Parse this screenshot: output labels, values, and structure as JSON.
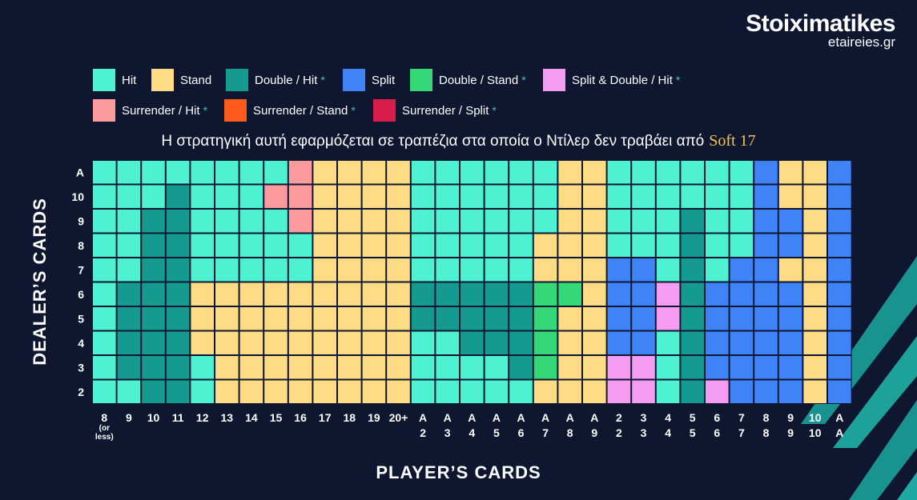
{
  "colors": {
    "background": "#0e1630",
    "Hit": "#4ef2d3",
    "Stand": "#fddc85",
    "Double / Hit": "#159a90",
    "Split": "#3e84f8",
    "Double / Stand": "#35d877",
    "Split & Double / Hit": "#f39cf1",
    "Surrender / Hit": "#fb9b9e",
    "Surrender / Stand": "#fb5a1c",
    "Surrender / Split": "#d81c4b",
    "accent_gold": "#f3c34b",
    "star": "#3cc8b4"
  },
  "logo": {
    "main": "Stoiximatikes",
    "sub": "etaireies.gr"
  },
  "legend": [
    {
      "label": "Hit",
      "star": false
    },
    {
      "label": "Stand",
      "star": false
    },
    {
      "label": "Double / Hit",
      "star": true
    },
    {
      "label": "Split",
      "star": false
    },
    {
      "label": "Double / Stand",
      "star": true
    },
    {
      "label": "Split & Double / Hit",
      "star": true
    },
    {
      "label": "Surrender / Hit",
      "star": true
    },
    {
      "label": "Surrender / Stand",
      "star": true
    },
    {
      "label": "Surrender / Split",
      "star": true
    }
  ],
  "star_symbol": "*",
  "subtitle": {
    "text": "Η στρατηγική αυτή εφαρμόζεται σε τραπέζια στα οποία ο Ντίλερ δεν τραβάει από",
    "highlight": "Soft 17"
  },
  "chart_data": {
    "type": "heatmap",
    "xlabel": "PLAYER’S CARDS",
    "ylabel": "DEALER’S CARDS",
    "x": [
      [
        "8",
        "(or",
        "less)"
      ],
      [
        "9"
      ],
      [
        "10"
      ],
      [
        "11"
      ],
      [
        "12"
      ],
      [
        "13"
      ],
      [
        "14"
      ],
      [
        "15"
      ],
      [
        "16"
      ],
      [
        "17"
      ],
      [
        "18"
      ],
      [
        "19"
      ],
      [
        "20+"
      ],
      [
        "A",
        "2"
      ],
      [
        "A",
        "3"
      ],
      [
        "A",
        "4"
      ],
      [
        "A",
        "5"
      ],
      [
        "A",
        "6"
      ],
      [
        "A",
        "7"
      ],
      [
        "A",
        "8"
      ],
      [
        "A",
        "9"
      ],
      [
        "2",
        "2"
      ],
      [
        "3",
        "3"
      ],
      [
        "4",
        "4"
      ],
      [
        "5",
        "5"
      ],
      [
        "6",
        "6"
      ],
      [
        "7",
        "7"
      ],
      [
        "8",
        "8"
      ],
      [
        "9",
        "9"
      ],
      [
        "10",
        "10"
      ],
      [
        "A",
        "A"
      ]
    ],
    "y": [
      "A",
      "10",
      "9",
      "8",
      "7",
      "6",
      "5",
      "4",
      "3",
      "2"
    ],
    "legend_codes": {
      "H": "Hit",
      "S": "Stand",
      "D": "Double / Hit",
      "P": "Split",
      "Ds": "Double / Stand",
      "PD": "Split & Double / Hit",
      "RH": "Surrender / Hit"
    },
    "cells": [
      [
        "H",
        "H",
        "H",
        "H",
        "H",
        "H",
        "H",
        "H",
        "RH",
        "S",
        "S",
        "S",
        "S",
        "H",
        "H",
        "H",
        "H",
        "H",
        "H",
        "S",
        "S",
        "H",
        "H",
        "H",
        "H",
        "H",
        "H",
        "P",
        "S",
        "S",
        "P"
      ],
      [
        "H",
        "H",
        "H",
        "D",
        "H",
        "H",
        "H",
        "RH",
        "RH",
        "S",
        "S",
        "S",
        "S",
        "H",
        "H",
        "H",
        "H",
        "H",
        "H",
        "S",
        "S",
        "H",
        "H",
        "H",
        "H",
        "H",
        "H",
        "P",
        "S",
        "S",
        "P"
      ],
      [
        "H",
        "H",
        "D",
        "D",
        "H",
        "H",
        "H",
        "H",
        "RH",
        "S",
        "S",
        "S",
        "S",
        "H",
        "H",
        "H",
        "H",
        "H",
        "H",
        "S",
        "S",
        "H",
        "H",
        "H",
        "D",
        "H",
        "H",
        "P",
        "P",
        "S",
        "P"
      ],
      [
        "H",
        "H",
        "D",
        "D",
        "H",
        "H",
        "H",
        "H",
        "H",
        "S",
        "S",
        "S",
        "S",
        "H",
        "H",
        "H",
        "H",
        "H",
        "S",
        "S",
        "S",
        "H",
        "H",
        "H",
        "D",
        "H",
        "H",
        "P",
        "P",
        "S",
        "P"
      ],
      [
        "H",
        "H",
        "D",
        "D",
        "H",
        "H",
        "H",
        "H",
        "H",
        "S",
        "S",
        "S",
        "S",
        "H",
        "H",
        "H",
        "H",
        "H",
        "S",
        "S",
        "S",
        "P",
        "P",
        "H",
        "D",
        "H",
        "P",
        "P",
        "S",
        "S",
        "P"
      ],
      [
        "H",
        "D",
        "D",
        "D",
        "S",
        "S",
        "S",
        "S",
        "S",
        "S",
        "S",
        "S",
        "S",
        "D",
        "D",
        "D",
        "D",
        "D",
        "Ds",
        "Ds",
        "S",
        "P",
        "P",
        "PD",
        "D",
        "P",
        "P",
        "P",
        "P",
        "S",
        "P"
      ],
      [
        "H",
        "D",
        "D",
        "D",
        "S",
        "S",
        "S",
        "S",
        "S",
        "S",
        "S",
        "S",
        "S",
        "D",
        "D",
        "D",
        "D",
        "D",
        "Ds",
        "S",
        "S",
        "P",
        "P",
        "PD",
        "D",
        "P",
        "P",
        "P",
        "P",
        "S",
        "P"
      ],
      [
        "H",
        "D",
        "D",
        "D",
        "S",
        "S",
        "S",
        "S",
        "S",
        "S",
        "S",
        "S",
        "S",
        "H",
        "H",
        "D",
        "D",
        "D",
        "Ds",
        "S",
        "S",
        "P",
        "P",
        "H",
        "D",
        "P",
        "P",
        "P",
        "P",
        "S",
        "P"
      ],
      [
        "H",
        "D",
        "D",
        "D",
        "H",
        "S",
        "S",
        "S",
        "S",
        "S",
        "S",
        "S",
        "S",
        "H",
        "H",
        "H",
        "H",
        "D",
        "Ds",
        "S",
        "S",
        "PD",
        "PD",
        "H",
        "D",
        "P",
        "P",
        "P",
        "P",
        "S",
        "P"
      ],
      [
        "H",
        "H",
        "D",
        "D",
        "H",
        "S",
        "S",
        "S",
        "S",
        "S",
        "S",
        "S",
        "S",
        "H",
        "H",
        "H",
        "H",
        "H",
        "S",
        "S",
        "S",
        "PD",
        "PD",
        "H",
        "D",
        "PD",
        "P",
        "P",
        "P",
        "S",
        "P"
      ]
    ]
  }
}
